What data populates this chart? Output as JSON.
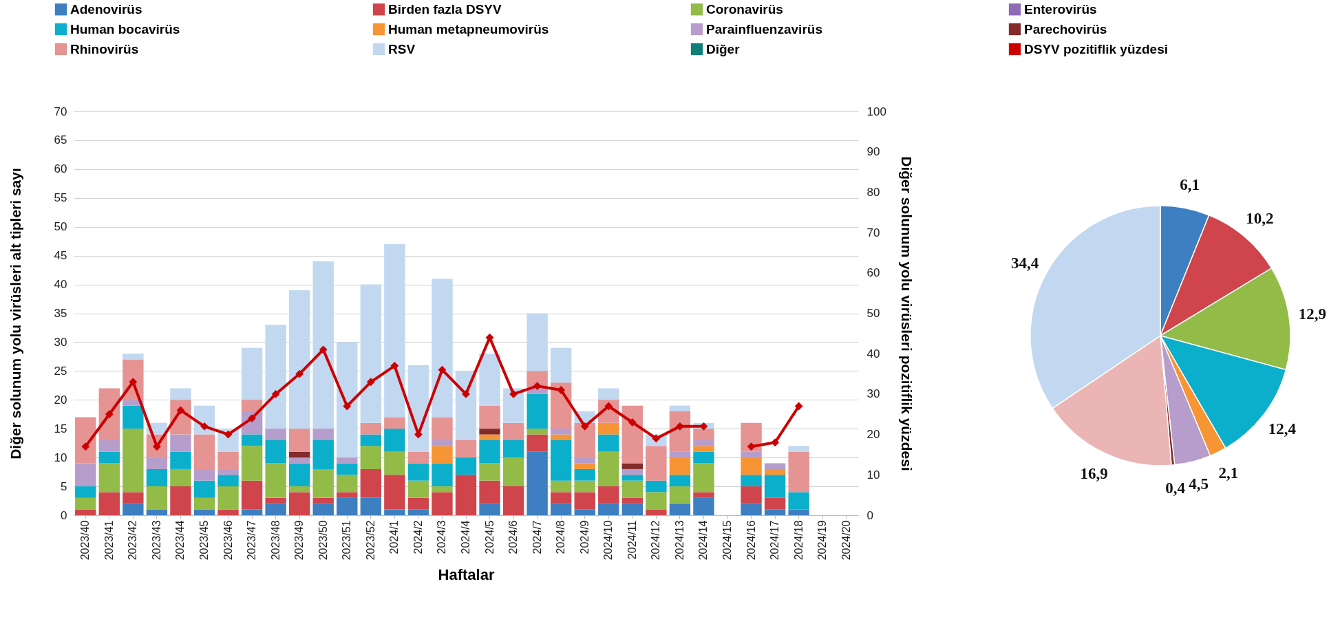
{
  "chart_data": [
    {
      "type": "bar",
      "stacked": true,
      "xlabel": "Haftalar",
      "ylabel": "Diğer solunum yolu virüsleri alt tipleri sayı",
      "y2label": "Diğer solunum yolu virüsleri pozitiflik yüzdesi",
      "categories": [
        "2023/40",
        "2023/41",
        "2023/42",
        "2023/43",
        "2023/44",
        "2023/45",
        "2023/46",
        "2023/47",
        "2023/48",
        "2023/49",
        "2023/50",
        "2023/51",
        "2023/52",
        "2024/1",
        "2024/2",
        "2024/3",
        "2024/4",
        "2024/5",
        "2024/6",
        "2024/7",
        "2024/8",
        "2024/9",
        "2024/10",
        "2024/11",
        "2024/12",
        "2024/13",
        "2024/14",
        "2024/15",
        "2024/16",
        "2024/17",
        "2024/18",
        "2024/19",
        "2024/20"
      ],
      "series": [
        {
          "name": "Adenovirüs",
          "color": "#3d7fc1",
          "values": [
            null,
            null,
            2,
            1,
            null,
            1,
            null,
            1,
            2,
            null,
            2,
            3,
            3,
            1,
            1,
            null,
            null,
            2,
            null,
            11,
            2,
            1,
            2,
            2,
            null,
            2,
            3,
            null,
            2,
            1,
            1,
            null,
            null
          ]
        },
        {
          "name": "Birden fazla DSYV",
          "color": "#d0454c",
          "values": [
            1,
            4,
            2,
            null,
            5,
            null,
            1,
            5,
            1,
            4,
            1,
            1,
            5,
            6,
            2,
            4,
            7,
            4,
            5,
            3,
            2,
            3,
            3,
            1,
            1,
            null,
            1,
            null,
            3,
            2,
            null,
            null,
            null
          ]
        },
        {
          "name": "Coronavirüs",
          "color": "#93bb48",
          "values": [
            2,
            5,
            11,
            4,
            3,
            2,
            4,
            6,
            6,
            1,
            5,
            3,
            4,
            4,
            3,
            1,
            null,
            3,
            5,
            1,
            2,
            2,
            6,
            3,
            3,
            3,
            5,
            null,
            null,
            null,
            null,
            null,
            null
          ]
        },
        {
          "name": "Enterovirüs",
          "color": "#8e6bb5",
          "values": [
            null,
            null,
            null,
            null,
            null,
            null,
            null,
            null,
            null,
            null,
            null,
            null,
            null,
            null,
            null,
            null,
            null,
            null,
            null,
            null,
            null,
            null,
            null,
            null,
            null,
            null,
            null,
            null,
            null,
            null,
            null,
            null,
            null
          ]
        },
        {
          "name": "Human bocavirüs",
          "color": "#0bafcb",
          "values": [
            2,
            2,
            4,
            3,
            3,
            3,
            2,
            2,
            4,
            4,
            5,
            2,
            2,
            4,
            3,
            4,
            3,
            4,
            3,
            6,
            7,
            2,
            3,
            1,
            2,
            2,
            2,
            null,
            2,
            4,
            3,
            null,
            null
          ]
        },
        {
          "name": "Human metapneumovirüs",
          "color": "#f79433",
          "values": [
            null,
            null,
            null,
            null,
            null,
            null,
            null,
            null,
            null,
            null,
            null,
            null,
            null,
            null,
            null,
            3,
            null,
            1,
            null,
            null,
            1,
            1,
            2,
            null,
            null,
            3,
            1,
            null,
            3,
            1,
            null,
            null,
            null
          ]
        },
        {
          "name": "Parainfluenzavirüs",
          "color": "#b69dcb",
          "values": [
            4,
            2,
            1,
            2,
            3,
            2,
            1,
            4,
            2,
            1,
            2,
            1,
            null,
            null,
            null,
            1,
            null,
            null,
            null,
            1,
            1,
            1,
            null,
            1,
            null,
            1,
            1,
            null,
            1,
            1,
            null,
            null,
            null
          ]
        },
        {
          "name": "Parechovirüs",
          "color": "#832a2a",
          "values": [
            null,
            null,
            null,
            null,
            null,
            null,
            null,
            null,
            null,
            1,
            null,
            null,
            null,
            null,
            null,
            null,
            null,
            1,
            null,
            null,
            null,
            null,
            null,
            1,
            null,
            null,
            null,
            null,
            null,
            null,
            null,
            null,
            null
          ]
        },
        {
          "name": "Rhinovirüs",
          "color": "#e59393",
          "values": [
            8,
            9,
            7,
            4,
            6,
            6,
            3,
            2,
            null,
            4,
            null,
            null,
            2,
            2,
            2,
            4,
            3,
            4,
            3,
            3,
            8,
            6,
            4,
            10,
            6,
            7,
            2,
            null,
            5,
            null,
            7,
            null,
            null
          ]
        },
        {
          "name": "RSV",
          "color": "#c2d8f0",
          "values": [
            null,
            null,
            1,
            2,
            2,
            5,
            4,
            9,
            18,
            24,
            29,
            20,
            24,
            30,
            15,
            24,
            12,
            9,
            6,
            10,
            6,
            2,
            2,
            null,
            2,
            1,
            1,
            null,
            null,
            null,
            1,
            null,
            null
          ]
        },
        {
          "name": "Diğer",
          "color": "#0f8078",
          "values": [
            null,
            null,
            null,
            null,
            null,
            null,
            null,
            null,
            null,
            null,
            null,
            null,
            null,
            null,
            null,
            null,
            null,
            null,
            null,
            null,
            null,
            null,
            null,
            null,
            null,
            null,
            null,
            null,
            null,
            null,
            null,
            null,
            null
          ]
        },
        {
          "name": "DSYV pozitiflik yüzdesi",
          "type": "line",
          "axis": "y2",
          "marker": "diamond",
          "color": "#cc0000",
          "values": [
            17,
            25,
            33,
            17,
            26,
            22,
            20,
            24,
            30,
            35,
            41,
            27,
            33,
            37,
            20,
            36,
            30,
            44,
            30,
            32,
            31,
            22,
            27,
            23,
            19,
            22,
            22,
            null,
            17,
            18,
            27,
            null,
            null
          ]
        }
      ],
      "ylim": [
        0,
        70
      ],
      "yticks": [
        0,
        5,
        10,
        15,
        20,
        25,
        30,
        35,
        40,
        45,
        50,
        55,
        60,
        65,
        70
      ],
      "y2lim": [
        0,
        100
      ],
      "y2ticks": [
        0,
        10,
        20,
        30,
        40,
        50,
        60,
        70,
        80,
        90,
        100
      ],
      "grid": "y",
      "legend": "top"
    },
    {
      "type": "pie",
      "categories": [
        null,
        null,
        null,
        null,
        null,
        null,
        null,
        null,
        null
      ],
      "values": [
        6.1,
        10.2,
        12.9,
        12.4,
        2.1,
        4.5,
        0.4,
        16.9,
        34.4
      ],
      "colors": [
        "#3d7fc1",
        "#d0454c",
        "#93bb48",
        "#0bafcb",
        "#f79433",
        "#b69dcb",
        "#832a2a",
        "#ebb5b5",
        "#c2d8f0"
      ],
      "value_labels": [
        "6,1",
        "10,2",
        "12,9",
        "12,4",
        "2,1",
        "4,5",
        "0,4",
        "16,9",
        "34,4"
      ]
    }
  ]
}
